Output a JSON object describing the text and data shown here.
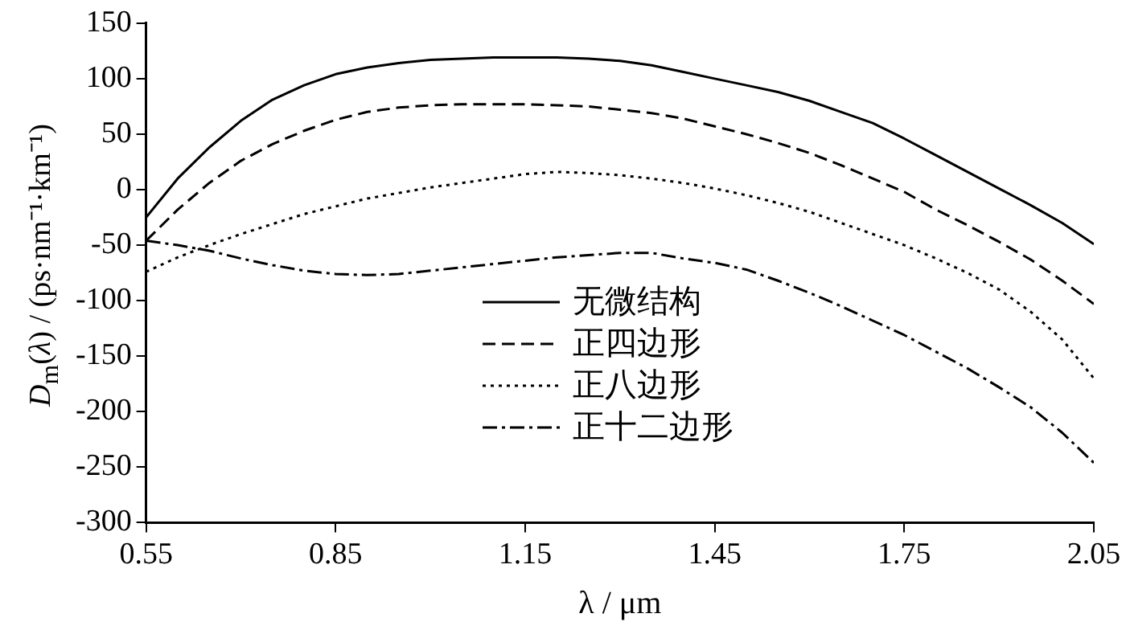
{
  "chart_data": {
    "type": "line",
    "xlabel": "λ / μm",
    "ylabel": "D$_{m}$(λ) / (ps·nm⁻¹·km⁻¹)",
    "x": [
      0.55,
      0.6,
      0.65,
      0.7,
      0.75,
      0.8,
      0.85,
      0.9,
      0.95,
      1.0,
      1.05,
      1.1,
      1.15,
      1.2,
      1.25,
      1.3,
      1.35,
      1.4,
      1.45,
      1.5,
      1.55,
      1.6,
      1.65,
      1.7,
      1.75,
      1.8,
      1.85,
      1.9,
      1.95,
      2.0,
      2.05
    ],
    "series": [
      {
        "name": "无微结构",
        "color": "#000000",
        "line_style": "solid",
        "values": [
          -25,
          10,
          38,
          62,
          81,
          94,
          104,
          110,
          114,
          117,
          118,
          119,
          119,
          119,
          118,
          116,
          112,
          106,
          100,
          94,
          88,
          80,
          70,
          60,
          46,
          31,
          16,
          1,
          -14,
          -30,
          -49
        ]
      },
      {
        "name": "正四边形",
        "color": "#000000",
        "line_style": "dashed",
        "values": [
          -46,
          -18,
          6,
          26,
          41,
          53,
          63,
          70,
          74,
          76,
          77,
          77,
          77,
          76,
          75,
          72,
          69,
          64,
          57,
          50,
          42,
          33,
          22,
          10,
          -2,
          -18,
          -32,
          -47,
          -63,
          -82,
          -103
        ]
      },
      {
        "name": "正八边形",
        "color": "#000000",
        "line_style": "dotted",
        "values": [
          -74,
          -61,
          -50,
          -40,
          -31,
          -22,
          -15,
          -8,
          -3,
          2,
          6,
          10,
          14,
          16,
          15,
          13,
          10,
          6,
          1,
          -5,
          -12,
          -20,
          -30,
          -40,
          -50,
          -62,
          -75,
          -90,
          -110,
          -135,
          -170
        ]
      },
      {
        "name": "正十二边形",
        "color": "#000000",
        "line_style": "dashdot",
        "values": [
          -46,
          -50,
          -55,
          -62,
          -68,
          -73,
          -76,
          -77,
          -76,
          -73,
          -70,
          -67,
          -64,
          -61,
          -59,
          -57,
          -57,
          -62,
          -66,
          -72,
          -82,
          -93,
          -105,
          -118,
          -131,
          -146,
          -161,
          -178,
          -196,
          -219,
          -246
        ]
      }
    ],
    "xlim": [
      0.55,
      2.05
    ],
    "xticks": [
      {
        "value": 0.55,
        "label": "0.55"
      },
      {
        "value": 0.85,
        "label": "0.85"
      },
      {
        "value": 1.15,
        "label": "1.15"
      },
      {
        "value": 1.45,
        "label": "1.45"
      },
      {
        "value": 1.75,
        "label": "1.75"
      },
      {
        "value": 2.05,
        "label": "2.05"
      }
    ],
    "ylim": [
      -300,
      150
    ],
    "yticks": [
      -300,
      -250,
      -200,
      -150,
      -100,
      -50,
      0,
      50,
      100,
      150
    ],
    "grid": false,
    "legend": "bottom",
    "marker": "none"
  }
}
